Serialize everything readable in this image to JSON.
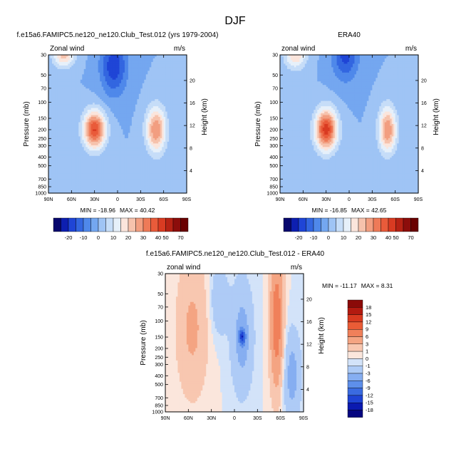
{
  "chart_data": {
    "title": "DJF",
    "panels": [
      {
        "type": "heatmap",
        "kind": "contour",
        "title": "f.e15a6.FAMIPC5.ne120_ne120.Club_Test.012 (yrs 1979-2004)",
        "left_label": "Zonal wind",
        "right_label": "m/s",
        "ylabel": "Pressure (mb)",
        "ylabel_right": "Height (km)",
        "x_ticks": [
          "90N",
          "60N",
          "30N",
          "0",
          "30S",
          "60S",
          "90S"
        ],
        "y_ticks": [
          "30",
          "50",
          "70",
          "100",
          "150",
          "200",
          "250",
          "300",
          "400",
          "500",
          "700",
          "850",
          "1000"
        ],
        "y_right_ticks": [
          "20",
          "16",
          "12",
          "8",
          "4"
        ],
        "min_label": "MIN = -18.96",
        "max_label": "MAX =  40.42",
        "features": [
          {
            "lat": 30,
            "pressure": 200,
            "value": 40.42,
            "sigma_lat": 10,
            "sigma_logp": 0.33
          },
          {
            "lat": -50,
            "pressure": 200,
            "value": 30,
            "sigma_lat": 9,
            "sigma_logp": 0.4
          },
          {
            "lat": 70,
            "pressure": 30,
            "value": 22,
            "sigma_lat": 10,
            "sigma_logp": 0.22
          },
          {
            "lat": 5,
            "pressure": 40,
            "value": -18.96,
            "sigma_lat": 12,
            "sigma_logp": 0.5
          }
        ]
      },
      {
        "type": "heatmap",
        "kind": "contour",
        "title": "ERA40",
        "left_label": "zonal wind",
        "right_label": "m/s",
        "ylabel": "Pressure (mb)",
        "ylabel_right": "Height (km)",
        "x_ticks": [
          "90N",
          "60N",
          "30N",
          "0",
          "30S",
          "60S",
          "90S"
        ],
        "y_ticks": [
          "30",
          "50",
          "70",
          "100",
          "150",
          "200",
          "250",
          "300",
          "400",
          "500",
          "700",
          "850",
          "1000"
        ],
        "y_right_ticks": [
          "20",
          "16",
          "12",
          "8",
          "4"
        ],
        "min_label": "MIN = -16.85",
        "max_label": "MAX =  42.65",
        "features": [
          {
            "lat": 30,
            "pressure": 200,
            "value": 42.65,
            "sigma_lat": 10,
            "sigma_logp": 0.36
          },
          {
            "lat": -50,
            "pressure": 200,
            "value": 30,
            "sigma_lat": 8,
            "sigma_logp": 0.4
          },
          {
            "lat": 70,
            "pressure": 30,
            "value": 20,
            "sigma_lat": 10,
            "sigma_logp": 0.25
          },
          {
            "lat": 5,
            "pressure": 30,
            "value": -16.85,
            "sigma_lat": 12,
            "sigma_logp": 0.45
          }
        ]
      },
      {
        "type": "heatmap",
        "kind": "contour",
        "title": "f.e15a6.FAMIPC5.ne120_ne120.Club_Test.012 - ERA40",
        "left_label": "zonal wind",
        "right_label": "m/s",
        "ylabel": "Pressure (mb)",
        "ylabel_right": "Height (km)",
        "x_ticks": [
          "90N",
          "60N",
          "30N",
          "0",
          "30S",
          "60S",
          "90S"
        ],
        "y_ticks": [
          "30",
          "50",
          "70",
          "100",
          "150",
          "200",
          "250",
          "300",
          "400",
          "500",
          "700",
          "850",
          "1000"
        ],
        "y_right_ticks": [
          "20",
          "16",
          "12",
          "8",
          "4"
        ],
        "min_label": "MIN = -11.17",
        "max_label": "MAX =  8.31",
        "features": [
          {
            "lat": -55,
            "pressure": 100,
            "value": 8.31,
            "sigma_lat": 6,
            "sigma_logp": 1.2
          },
          {
            "lat": 55,
            "pressure": 120,
            "value": 3.5,
            "sigma_lat": 14,
            "sigma_logp": 1.2
          },
          {
            "lat": -10,
            "pressure": 150,
            "value": -4,
            "sigma_lat": 10,
            "sigma_logp": 1.0
          },
          {
            "lat": -10,
            "pressure": 150,
            "value": -11.17,
            "sigma_lat": 3,
            "sigma_logp": 0.15
          },
          {
            "lat": 20,
            "pressure": 60,
            "value": -3,
            "sigma_lat": 8,
            "sigma_logp": 0.6
          },
          {
            "lat": -75,
            "pressure": 400,
            "value": -4,
            "sigma_lat": 8,
            "sigma_logp": 0.8
          }
        ]
      }
    ],
    "colorbars": [
      {
        "orientation": "horizontal",
        "levels": [
          -25,
          -20,
          -15,
          -10,
          -5,
          0,
          5,
          10,
          15,
          20,
          25,
          30,
          35,
          40,
          50,
          60,
          70
        ],
        "tick_labels": [
          "-20",
          "-10",
          "0",
          "10",
          "20",
          "30",
          "40",
          "50",
          "70"
        ],
        "colors": [
          "#08086e",
          "#0d1fb0",
          "#1f45d6",
          "#3366e0",
          "#4f88ea",
          "#74a7f0",
          "#9fc4f5",
          "#c6ddf8",
          "#e6f0fa",
          "#fbe5dc",
          "#f6c2ac",
          "#f29e80",
          "#ee7a58",
          "#e95b3a",
          "#d93b22",
          "#b62214",
          "#8c0d0b",
          "#6a0000"
        ]
      },
      {
        "orientation": "vertical",
        "levels": [
          -18,
          -15,
          -12,
          -9,
          -6,
          -3,
          -1,
          0,
          1,
          3,
          6,
          9,
          12,
          15,
          18
        ],
        "tick_labels": [
          "18",
          "15",
          "12",
          "9",
          "6",
          "3",
          "1",
          "0",
          "-1",
          "-3",
          "-6",
          "-9",
          "-12",
          "-15",
          "-18"
        ],
        "colors": [
          "#050580",
          "#0b1ab0",
          "#1f44d4",
          "#3a6be0",
          "#5e8fea",
          "#86aef1",
          "#aecbf6",
          "#d3e3f9",
          "#fbe6dc",
          "#f8c7b0",
          "#f4a482",
          "#f0805a",
          "#ea5c36",
          "#d93a20",
          "#b31a10",
          "#8b0a08"
        ]
      }
    ]
  }
}
